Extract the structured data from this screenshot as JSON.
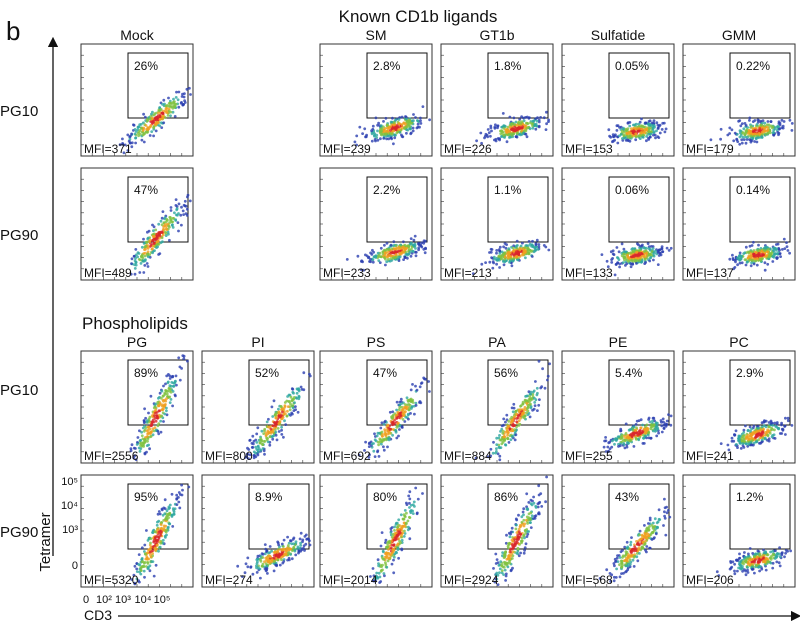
{
  "panel_letter": "b",
  "section_known": "Known CD1b ligands",
  "section_phospho": "Phospholipids",
  "axis": {
    "y_label": "Tetramer",
    "x_label": "CD3",
    "y_ticks": [
      "10⁵",
      "10⁴",
      "10³",
      "0"
    ],
    "x_ticks": [
      "0",
      "10²",
      "10³",
      "10⁴",
      "10⁵"
    ]
  },
  "chart_data": {
    "type": "scatter",
    "description": "Flow cytometry density plots: tetramer vs CD3; gated percentage and MFI per condition",
    "rows": [
      "PG10",
      "PG90",
      "PG10",
      "PG90"
    ],
    "groups": [
      {
        "title": "Known CD1b ligands",
        "columns": [
          "Mock",
          "SM",
          "GT1b",
          "Sulfatide",
          "GMM"
        ],
        "cells": [
          [
            {
              "label": "Mock",
              "pct": "26%",
              "mfi": "MFI=371"
            },
            {
              "label": "SM",
              "pct": "2.8%",
              "mfi": "MFI=239"
            },
            {
              "label": "GT1b",
              "pct": "1.8%",
              "mfi": "MFI=226"
            },
            {
              "label": "Sulfatide",
              "pct": "0.05%",
              "mfi": "MFI=153"
            },
            {
              "label": "GMM",
              "pct": "0.22%",
              "mfi": "MFI=179"
            }
          ],
          [
            {
              "label": "Mock",
              "pct": "47%",
              "mfi": "MFI=489"
            },
            {
              "label": "SM",
              "pct": "2.2%",
              "mfi": "MFI=233"
            },
            {
              "label": "GT1b",
              "pct": "1.1%",
              "mfi": "MFI=213"
            },
            {
              "label": "Sulfatide",
              "pct": "0.06%",
              "mfi": "MFI=133"
            },
            {
              "label": "GMM",
              "pct": "0.14%",
              "mfi": "MFI=137"
            }
          ]
        ]
      },
      {
        "title": "Phospholipids",
        "columns": [
          "PG",
          "PI",
          "PS",
          "PA",
          "PE",
          "PC"
        ],
        "cells": [
          [
            {
              "label": "PG",
              "pct": "89%",
              "mfi": "MFI=2556"
            },
            {
              "label": "PI",
              "pct": "52%",
              "mfi": "MFI=800"
            },
            {
              "label": "PS",
              "pct": "47%",
              "mfi": "MFI=692"
            },
            {
              "label": "PA",
              "pct": "56%",
              "mfi": "MFI=884"
            },
            {
              "label": "PE",
              "pct": "5.4%",
              "mfi": "MFI=255"
            },
            {
              "label": "PC",
              "pct": "2.9%",
              "mfi": "MFI=241"
            }
          ],
          [
            {
              "label": "PG",
              "pct": "95%",
              "mfi": "MFI=5320"
            },
            {
              "label": "PI",
              "pct": "8.9%",
              "mfi": "MFI=274"
            },
            {
              "label": "PS",
              "pct": "80%",
              "mfi": "MFI=2014"
            },
            {
              "label": "PA",
              "pct": "86%",
              "mfi": "MFI=2924"
            },
            {
              "label": "PE",
              "pct": "43%",
              "mfi": "MFI=568"
            },
            {
              "label": "PC",
              "pct": "1.2%",
              "mfi": "MFI=206"
            }
          ]
        ]
      }
    ]
  }
}
